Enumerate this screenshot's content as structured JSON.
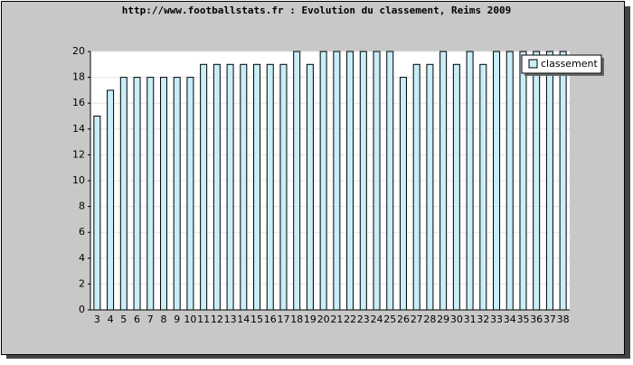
{
  "chart_data": {
    "type": "bar",
    "title": "http://www.footballstats.fr : Evolution du classement, Reims 2009",
    "categories": [
      "3",
      "4",
      "5",
      "6",
      "7",
      "8",
      "9",
      "10",
      "11",
      "12",
      "13",
      "14",
      "15",
      "16",
      "17",
      "18",
      "19",
      "20",
      "21",
      "22",
      "23",
      "24",
      "25",
      "26",
      "27",
      "28",
      "29",
      "30",
      "31",
      "32",
      "33",
      "34",
      "35",
      "36",
      "37",
      "38"
    ],
    "series": [
      {
        "name": "classement",
        "color": "#c8eef8",
        "values": [
          15,
          17,
          18,
          18,
          18,
          18,
          18,
          18,
          19,
          19,
          19,
          19,
          19,
          19,
          19,
          20,
          19,
          20,
          20,
          20,
          20,
          20,
          20,
          18,
          19,
          19,
          20,
          19,
          20,
          19,
          20,
          20,
          20,
          20,
          20,
          20
        ]
      }
    ],
    "ylim": [
      0,
      20
    ],
    "yticks": [
      0,
      2,
      4,
      6,
      8,
      10,
      12,
      14,
      16,
      18,
      20
    ],
    "grid": true,
    "legend": "top-right"
  }
}
